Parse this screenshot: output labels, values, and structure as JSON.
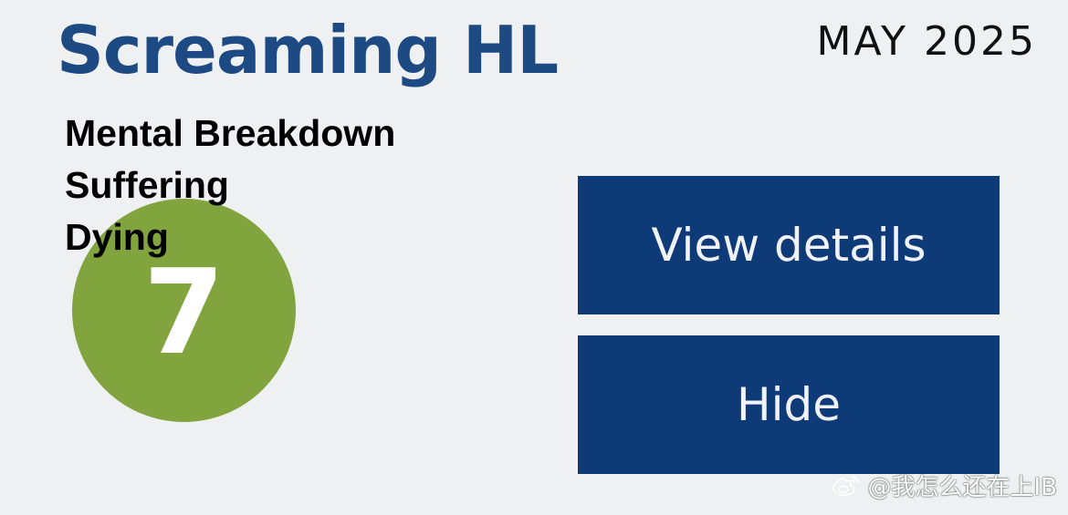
{
  "header": {
    "title": "Screaming HL",
    "session": "MAY 2025"
  },
  "overlay": {
    "lines": [
      "Mental Breakdown",
      "Suffering",
      "Dying"
    ]
  },
  "result": {
    "grade": "7"
  },
  "actions": {
    "view_details_label": "View details",
    "hide_label": "Hide"
  },
  "watermark": {
    "text": "@我怎么还在上IB",
    "icon": "weibo-icon"
  },
  "colors": {
    "title": "#1d4a82",
    "button": "#0e3b78",
    "grade_circle": "#82a43e",
    "background": "#eff0f2"
  }
}
